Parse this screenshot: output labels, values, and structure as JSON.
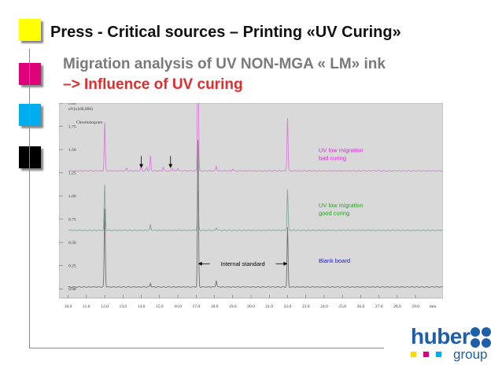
{
  "slide": {
    "title": "Press - Critical sources – Printing «UV Curing»",
    "subtitle_line1": "Migration analysis of UV NON-MGA « LM» ink",
    "subtitle_line2": "–> Influence of UV curing",
    "swatch_colors": [
      "#ffff00",
      "#e0007a",
      "#00aeef",
      "#000000"
    ]
  },
  "logo": {
    "word": "huber",
    "group": "group",
    "color": "#1f5ea8",
    "dot_colors": [
      "#ffd700",
      "#e0007a",
      "#00aeef"
    ]
  },
  "chart_data": {
    "type": "line",
    "ylabel": "uV(x100,000)",
    "subtitle": "Chromatogram",
    "xunit": "min",
    "xlim": [
      9.5,
      30.5
    ],
    "ylim": [
      -0.1,
      2.0
    ],
    "xticks": [
      "10.0",
      "11.0",
      "12.0",
      "13.0",
      "14.0",
      "15.0",
      "16.0",
      "17.0",
      "18.0",
      "19.0",
      "20.0",
      "21.0",
      "22.0",
      "23.0",
      "24.0",
      "25.0",
      "26.0",
      "27.0",
      "28.0",
      "29.0"
    ],
    "yticks": [
      "2.00",
      "1.75",
      "1.50",
      "1.25",
      "1.00",
      "0.75",
      "0.50",
      "0.25",
      "0.00"
    ],
    "series": [
      {
        "name": "UV low migration bad curing",
        "label_line1": "UV low migration",
        "label_line2": "bad curing",
        "color": "#d67fd6",
        "baseline": 1.27,
        "label_y": 1.47,
        "peaks": [
          [
            12.0,
            0.52
          ],
          [
            13.2,
            0.03
          ],
          [
            14.0,
            0.05
          ],
          [
            14.3,
            0.04
          ],
          [
            14.5,
            0.16
          ],
          [
            15.2,
            0.04
          ],
          [
            15.7,
            0.03
          ],
          [
            16.0,
            0.03
          ],
          [
            17.1,
            1.62
          ],
          [
            18.1,
            0.05
          ],
          [
            19.0,
            0.02
          ],
          [
            22.0,
            0.57
          ]
        ]
      },
      {
        "name": "UV low migration good curing",
        "label_line1": "UV low migration",
        "label_line2": "good curing",
        "color": "#7fa89a",
        "baseline": 0.63,
        "label_y": 0.88,
        "peaks": [
          [
            12.0,
            0.49
          ],
          [
            14.5,
            0.06
          ],
          [
            17.1,
            0.42
          ],
          [
            18.1,
            0.03
          ],
          [
            22.0,
            0.44
          ]
        ]
      },
      {
        "name": "Blank board",
        "label_line1": "Blank board",
        "label_line2": "",
        "color": "#6f6f6f",
        "baseline": 0.02,
        "label_y": 0.28,
        "peaks": [
          [
            12.0,
            0.84
          ],
          [
            14.5,
            0.04
          ],
          [
            17.1,
            1.58
          ],
          [
            18.1,
            0.07
          ],
          [
            22.0,
            0.64
          ]
        ]
      }
    ],
    "annotations": [
      {
        "text": "Internal standard",
        "y": 0.27,
        "arrow_left_x": 17.1,
        "arrow_right_x": 22.0
      },
      {
        "text": "",
        "arrow_down_x": 14.0,
        "y_top": 1.43,
        "y_bottom": 1.3
      },
      {
        "text": "",
        "arrow_down_x": 15.6,
        "y_top": 1.43,
        "y_bottom": 1.3
      }
    ],
    "label_color_series_text": [
      "#cc33cc",
      "#2e9a2e",
      "#1a1acc"
    ]
  }
}
